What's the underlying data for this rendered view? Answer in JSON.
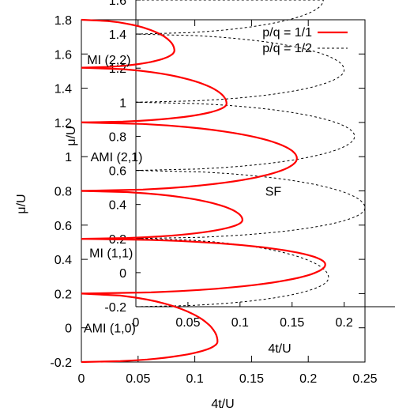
{
  "chart_data": {
    "type": "line",
    "xlabel": "4t/U",
    "ylabel": "μ/U",
    "xlim": [
      0,
      0.25
    ],
    "ylim": [
      -0.2,
      1.8
    ],
    "xticks": [
      "0",
      "0.05",
      "0.1",
      "0.15",
      "0.2",
      "0.25"
    ],
    "yticks": [
      "-0.2",
      "0",
      "0.2",
      "0.4",
      "0.6",
      "0.8",
      "1",
      "1.2",
      "1.4",
      "1.6",
      "1.8"
    ],
    "grid": false,
    "legend_position": "top-right",
    "series": [
      {
        "name": "p/q = 1/1",
        "color": "#ff0000",
        "style": "solid",
        "lobes": [
          {
            "mu_low": -0.2,
            "mu_high": 0.2,
            "peak_4t_over_U": 0.12,
            "peak_mu": -0.08
          },
          {
            "mu_low": 0.2,
            "mu_high": 0.52,
            "peak_4t_over_U": 0.215,
            "peak_mu": 0.37
          },
          {
            "mu_low": 0.52,
            "mu_high": 0.8,
            "peak_4t_over_U": 0.142,
            "peak_mu": 0.63
          },
          {
            "mu_low": 0.8,
            "mu_high": 1.2,
            "peak_4t_over_U": 0.19,
            "peak_mu": 0.99
          },
          {
            "mu_low": 1.2,
            "mu_high": 1.52,
            "peak_4t_over_U": 0.128,
            "peak_mu": 1.31
          },
          {
            "mu_low": 1.52,
            "mu_high": 1.8,
            "peak_4t_over_U": 0.082,
            "peak_mu": 1.62
          }
        ]
      },
      {
        "name": "p/q = 1/2",
        "color": "#000000",
        "style": "dashed"
      }
    ],
    "annotations": [
      {
        "text": "MI (2,2)",
        "x": 0.003,
        "mu": 1.57
      },
      {
        "text": "AMI (2,1)",
        "x": 0.006,
        "mu": 1.0
      },
      {
        "text": "SF",
        "x": 0.16,
        "mu": 0.8
      },
      {
        "text": "MI (1,1)",
        "x": 0.005,
        "mu": 0.44
      },
      {
        "text": "AMI (1,0)",
        "x": 0.0,
        "mu": 0.0
      }
    ],
    "inset": {
      "type": "line",
      "xlabel": "4t/U",
      "ylabel": "μ/U",
      "xlim": [
        0,
        0.22
      ],
      "ylim": [
        -0.2,
        1.6
      ],
      "xticks": [
        "0",
        "0.05",
        "0.1",
        "0.15",
        "0.2"
      ],
      "yticks": [
        "-0.2",
        "0",
        "0.2",
        "0.4",
        "0.6",
        "0.8",
        "1",
        "1.2",
        "1.4",
        "1.6"
      ],
      "series_style": "dashed",
      "lobes": [
        {
          "mu_low": -0.2,
          "mu_high": 0.2,
          "peak_4t_over_U": 0.185,
          "peak_mu": -0.03
        },
        {
          "mu_low": 0.2,
          "mu_high": 0.6,
          "peak_4t_over_U": 0.22,
          "peak_mu": 0.38
        },
        {
          "mu_low": 0.6,
          "mu_high": 1.0,
          "peak_4t_over_U": 0.21,
          "peak_mu": 0.8
        },
        {
          "mu_low": 1.0,
          "mu_high": 1.4,
          "peak_4t_over_U": 0.2,
          "peak_mu": 1.19
        },
        {
          "mu_low": 1.4,
          "mu_high": 1.6,
          "peak_4t_over_U": 0.18,
          "peak_mu": 1.6
        }
      ]
    }
  }
}
